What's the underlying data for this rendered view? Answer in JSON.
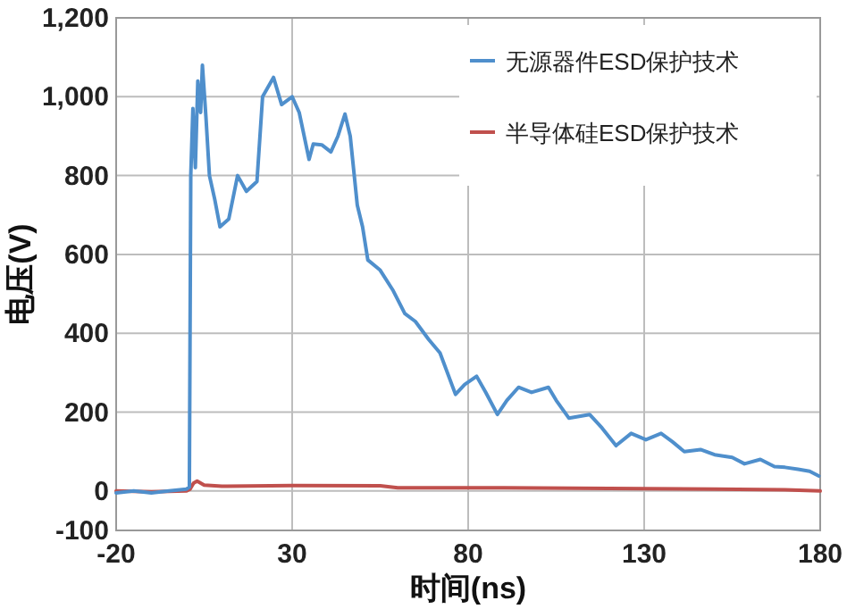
{
  "chart_data": {
    "type": "line",
    "xlabel": "时间(ns)",
    "ylabel": "电压(V)",
    "xlim": [
      -20,
      180
    ],
    "ylim": [
      -100,
      1200
    ],
    "xticks": [
      -20,
      30,
      80,
      130,
      180
    ],
    "yticks": [
      -100,
      0,
      200,
      400,
      600,
      800,
      {
        "value": 1000,
        "label": "1,000"
      },
      {
        "value": 1200,
        "label": "1,200"
      }
    ],
    "grid": true,
    "legend": "top right",
    "series": [
      {
        "name": "无源器件ESD保护技术",
        "color": "#4f8fcc",
        "x": [
          -20,
          -15,
          -10,
          -5,
          0,
          0.8,
          1.2,
          1.8,
          2.5,
          3.2,
          4,
          4.5,
          5.5,
          6.5,
          8,
          9.5,
          12,
          14.5,
          17,
          20,
          21.6,
          24.7,
          27,
          30,
          32,
          34.8,
          36,
          38.4,
          41,
          43,
          45,
          46.5,
          48.5,
          50,
          51.5,
          55,
          58.7,
          62,
          65,
          68.8,
          72,
          76.4,
          79,
          82.4,
          85,
          88.3,
          91,
          94.3,
          98,
          102.8,
          105,
          108.6,
          114.5,
          118,
          122,
          126.3,
          130.5,
          134.8,
          138,
          141.4,
          146,
          150,
          155,
          158.5,
          163,
          167,
          170,
          173.7,
          177,
          179.6
        ],
        "values": [
          -5,
          0,
          -5,
          0,
          5,
          10,
          800,
          970,
          820,
          1040,
          960,
          1080,
          950,
          800,
          740,
          670,
          690,
          800,
          760,
          785,
          1000,
          1049,
          980,
          1000,
          960,
          841,
          880,
          878,
          860,
          900,
          956,
          900,
          725,
          670,
          586,
          560,
          508,
          450,
          430,
          384,
          350,
          245,
          270,
          291,
          250,
          194,
          230,
          263,
          250,
          263,
          230,
          185,
          194,
          160,
          115,
          146,
          130,
          146,
          125,
          100,
          105,
          92,
          85,
          69,
          80,
          62,
          60,
          55,
          50,
          38
        ]
      },
      {
        "name": "半导体硅ESD保护技术",
        "color": "#c0504d",
        "x": [
          -20,
          -10,
          0,
          1,
          2,
          3,
          5,
          10,
          30,
          55,
          60,
          90,
          130,
          150,
          170,
          180
        ],
        "values": [
          0,
          -2,
          0,
          5,
          20,
          25,
          15,
          12,
          14,
          13,
          8,
          8,
          6,
          5,
          3,
          0
        ]
      }
    ]
  }
}
